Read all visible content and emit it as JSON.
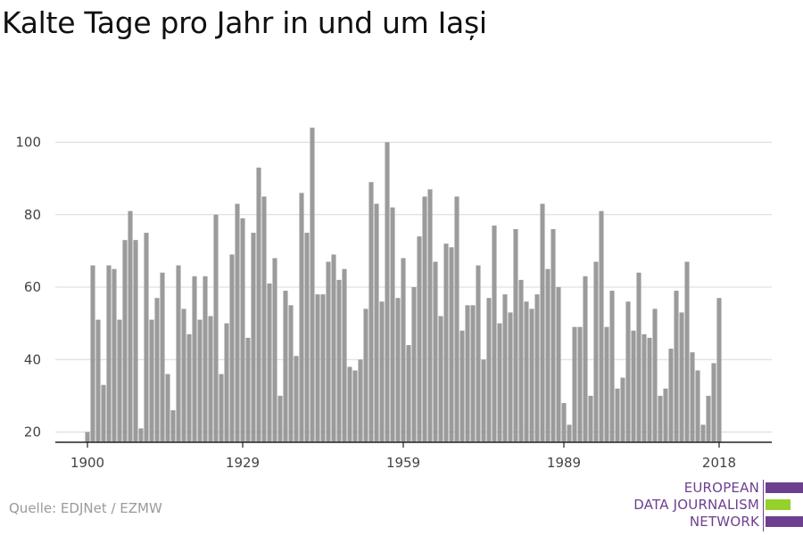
{
  "title": "Kalte Tage pro Jahr in und um Iași",
  "source": "Quelle: EDJNet / EZMW",
  "logo": {
    "lines": [
      "EUROPEAN",
      "DATA JOURNALISM",
      "NETWORK"
    ],
    "colors": {
      "text": "#6e3f8f",
      "purple": "#6e3f8f",
      "green": "#96d12b"
    }
  },
  "chart_data": {
    "type": "bar",
    "title": "Kalte Tage pro Jahr in und um Iași",
    "xlabel": "",
    "ylabel": "",
    "start_year": 1900,
    "end_year": 2018,
    "x_ticks": [
      1900,
      1929,
      1959,
      1989,
      2018
    ],
    "y_ticks": [
      20,
      40,
      60,
      80,
      100
    ],
    "ylim": [
      17,
      105
    ],
    "grid": true,
    "bar_color": "#9b9b9b",
    "grid_color": "#d9d9d9",
    "categories": [
      1900,
      1901,
      1902,
      1903,
      1904,
      1905,
      1906,
      1907,
      1908,
      1909,
      1910,
      1911,
      1912,
      1913,
      1914,
      1915,
      1916,
      1917,
      1918,
      1919,
      1920,
      1921,
      1922,
      1923,
      1924,
      1925,
      1926,
      1927,
      1928,
      1929,
      1930,
      1931,
      1932,
      1933,
      1934,
      1935,
      1936,
      1937,
      1938,
      1939,
      1940,
      1941,
      1942,
      1943,
      1944,
      1945,
      1946,
      1947,
      1948,
      1949,
      1950,
      1951,
      1952,
      1953,
      1954,
      1955,
      1956,
      1957,
      1958,
      1959,
      1960,
      1961,
      1962,
      1963,
      1964,
      1965,
      1966,
      1967,
      1968,
      1969,
      1970,
      1971,
      1972,
      1973,
      1974,
      1975,
      1976,
      1977,
      1978,
      1979,
      1980,
      1981,
      1982,
      1983,
      1984,
      1985,
      1986,
      1987,
      1988,
      1989,
      1990,
      1991,
      1992,
      1993,
      1994,
      1995,
      1996,
      1997,
      1998,
      1999,
      2000,
      2001,
      2002,
      2003,
      2004,
      2005,
      2006,
      2007,
      2008,
      2009,
      2010,
      2011,
      2012,
      2013,
      2014,
      2015,
      2016,
      2017,
      2018
    ],
    "values": [
      20,
      66,
      51,
      33,
      66,
      65,
      51,
      73,
      81,
      73,
      21,
      75,
      51,
      57,
      64,
      36,
      26,
      66,
      54,
      47,
      63,
      51,
      63,
      52,
      80,
      36,
      50,
      69,
      83,
      79,
      46,
      75,
      93,
      85,
      61,
      68,
      30,
      59,
      55,
      41,
      86,
      75,
      104,
      58,
      58,
      67,
      69,
      62,
      65,
      38,
      37,
      40,
      54,
      89,
      83,
      56,
      100,
      82,
      57,
      68,
      44,
      60,
      74,
      85,
      87,
      67,
      52,
      72,
      71,
      85,
      48,
      55,
      55,
      66,
      40,
      57,
      77,
      50,
      58,
      53,
      76,
      62,
      56,
      54,
      58,
      83,
      65,
      76,
      60,
      28,
      22,
      49,
      49,
      63,
      30,
      67,
      81,
      49,
      59,
      32,
      35,
      56,
      48,
      64,
      47,
      46,
      54,
      30,
      32,
      43,
      59,
      53,
      67,
      42,
      37,
      22,
      30,
      39,
      57
    ]
  }
}
